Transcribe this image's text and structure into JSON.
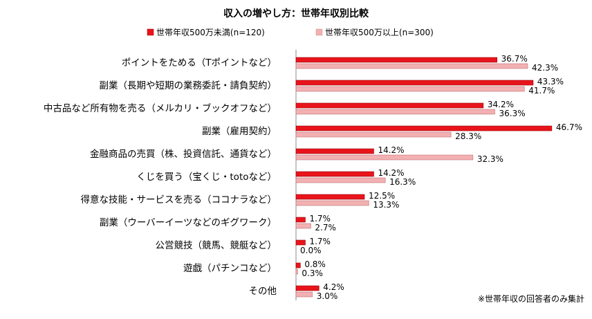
{
  "chart_data": {
    "type": "bar",
    "orientation": "horizontal",
    "title": "収入の増やし方：世帯年収別比較",
    "categories": [
      "ポイントをためる（Tポイントなど）",
      "副業（長期や短期の業務委託・請負契約）",
      "中古品など所有物を売る（メルカリ・ブックオフなど）",
      "副業（雇用契約）",
      "金融商品の売買（株、投資信託、通貨など）",
      "くじを買う（宝くじ・totoなど）",
      "得意な技能・サービスを売る（ココナラなど）",
      "副業（ウーバーイーツなどのギグワーク）",
      "公営競技（競馬、競艇など）",
      "遊戯（パチンコなど）",
      "その他"
    ],
    "series": [
      {
        "name": "世帯年収500万未満(n=120)",
        "color": "#e8141c",
        "values": [
          36.7,
          43.3,
          34.2,
          46.7,
          14.2,
          14.2,
          12.5,
          1.7,
          1.7,
          0.8,
          4.2
        ]
      },
      {
        "name": "世帯年収500万以上(n=300)",
        "color": "#f2b0b2",
        "values": [
          42.3,
          41.7,
          36.3,
          28.3,
          32.3,
          16.3,
          13.3,
          2.7,
          0.0,
          0.3,
          3.0
        ]
      }
    ],
    "value_suffix": "%",
    "xlim": [
      0,
      50
    ],
    "grid": false,
    "legend_position": "top",
    "note": "※世帯年収の回答者のみ集計"
  }
}
